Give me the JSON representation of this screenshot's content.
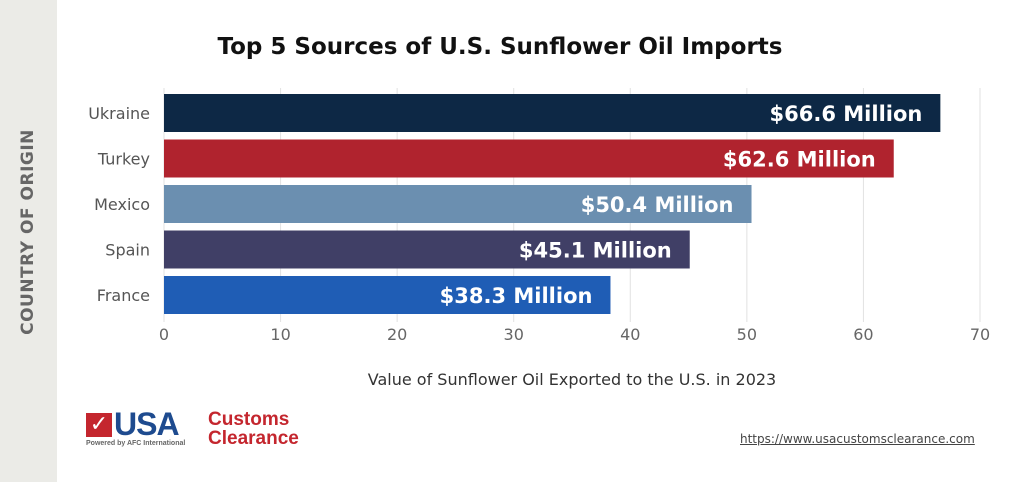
{
  "chart_data": {
    "type": "bar",
    "orientation": "horizontal",
    "title": "Top 5 Sources of U.S. Sunflower Oil Imports",
    "xlabel": "Value of Sunflower Oil Exported to the U.S. in 2023",
    "ylabel": "COUNTRY OF ORIGIN",
    "categories": [
      "Ukraine",
      "Turkey",
      "Mexico",
      "Spain",
      "France"
    ],
    "values": [
      66.6,
      62.6,
      50.4,
      45.1,
      38.3
    ],
    "data_labels": [
      "$66.6 Million",
      "$62.6 Million",
      "$50.4 Million",
      "$45.1 Million",
      "$38.3 Million"
    ],
    "colors": [
      "#0d2845",
      "#b0232e",
      "#6b8fb0",
      "#403f66",
      "#1f5db5"
    ],
    "xlim": [
      0,
      70
    ],
    "xticks": [
      "0",
      "10",
      "20",
      "30",
      "40",
      "50",
      "60",
      "70"
    ],
    "grid": true
  },
  "footer": {
    "logo_text": "USA Customs Clearance",
    "logo_usa": "USA",
    "logo_customs": "Customs",
    "logo_clearance": "Clearance",
    "logo_tagline": "Powered by AFC International",
    "url": "https://www.usacustomsclearance.com"
  }
}
